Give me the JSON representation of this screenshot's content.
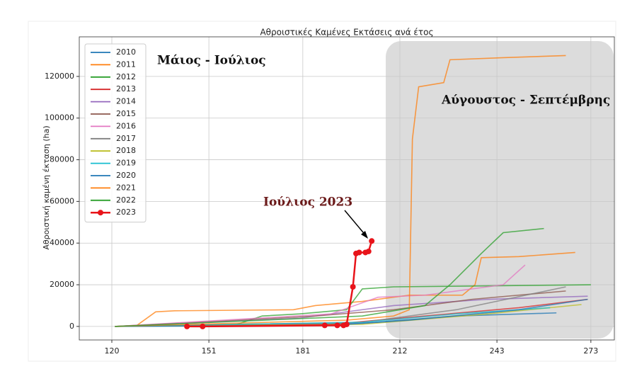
{
  "chart_data": {
    "type": "line",
    "title": "Αθροιστικές Καμένες Εκτάσεις ανά έτος",
    "y_label": "Αθροιστική καμένη έκταση (ha)",
    "annotations": [
      "Μάιος - Ιούλιος",
      "Αύγουστος - Σεπτέμβρης",
      "Ιούλιος 2023"
    ],
    "xlim": [
      109.6,
      280.5
    ],
    "xticks": [
      120,
      151,
      181,
      212,
      243,
      273
    ],
    "ylim": [
      -6500,
      139000
    ],
    "yticks": [
      0,
      20000,
      40000,
      60000,
      80000,
      100000,
      120000
    ],
    "grid": true,
    "legend": "upper left",
    "series": [
      {
        "name": "2010",
        "color": "#1f77b4",
        "x": [
          121,
          200,
          230,
          262
        ],
        "values": [
          0,
          1500,
          5000,
          6500
        ]
      },
      {
        "name": "2011",
        "color": "#ff7f0e",
        "x": [
          121,
          128,
          134,
          140,
          178,
          185,
          200,
          215,
          232,
          236,
          238,
          250,
          268
        ],
        "values": [
          0,
          500,
          7000,
          7500,
          8000,
          10000,
          12000,
          15000,
          15000,
          20000,
          33000,
          33500,
          35500
        ]
      },
      {
        "name": "2012",
        "color": "#2ca02c",
        "x": [
          121,
          160,
          168,
          180,
          195,
          200,
          210,
          273
        ],
        "values": [
          0,
          1000,
          5000,
          6000,
          8000,
          18000,
          19000,
          20000
        ]
      },
      {
        "name": "2013",
        "color": "#d62728",
        "x": [
          121,
          190,
          220,
          250,
          272
        ],
        "values": [
          0,
          1000,
          5000,
          9000,
          13000
        ]
      },
      {
        "name": "2014",
        "color": "#9467bd",
        "x": [
          121,
          180,
          210,
          240,
          272
        ],
        "values": [
          0,
          4000,
          10000,
          13000,
          14500
        ]
      },
      {
        "name": "2015",
        "color": "#8c564b",
        "x": [
          121,
          185,
          210,
          235,
          265
        ],
        "values": [
          0,
          5000,
          8000,
          13000,
          17000
        ]
      },
      {
        "name": "2016",
        "color": "#e377c2",
        "x": [
          121,
          190,
          205,
          220,
          245,
          252
        ],
        "values": [
          0,
          6000,
          14000,
          15000,
          20000,
          29500
        ]
      },
      {
        "name": "2017",
        "color": "#7f7f7f",
        "x": [
          121,
          200,
          230,
          265
        ],
        "values": [
          0,
          2000,
          8000,
          19000
        ]
      },
      {
        "name": "2018",
        "color": "#bcbd22",
        "x": [
          121,
          200,
          240,
          270
        ],
        "values": [
          0,
          1000,
          6000,
          10500
        ]
      },
      {
        "name": "2019",
        "color": "#17becf",
        "x": [
          121,
          200,
          230,
          260
        ],
        "values": [
          0,
          2000,
          6000,
          9000
        ]
      },
      {
        "name": "2020",
        "color": "#1f77b4",
        "x": [
          121,
          190,
          215,
          250,
          272
        ],
        "values": [
          0,
          500,
          3000,
          8000,
          13000
        ]
      },
      {
        "name": "2021",
        "color": "#ff7f0e",
        "x": [
          121,
          195,
          210,
          215,
          216,
          218,
          226,
          228,
          245,
          265
        ],
        "values": [
          0,
          3000,
          5000,
          8000,
          90000,
          115000,
          117000,
          128000,
          129000,
          130000
        ]
      },
      {
        "name": "2022",
        "color": "#2ca02c",
        "x": [
          121,
          200,
          220,
          228,
          238,
          245,
          258
        ],
        "values": [
          0,
          5000,
          10000,
          20000,
          35000,
          45000,
          47000
        ]
      },
      {
        "name": "2023",
        "color": "#e8141a",
        "markers": true,
        "x": [
          144,
          149,
          188,
          192,
          194,
          195,
          197,
          198,
          199,
          201,
          202,
          203
        ],
        "values": [
          0,
          0,
          500,
          500,
          500,
          1000,
          19000,
          35000,
          35500,
          35500,
          36000,
          41000
        ]
      }
    ]
  }
}
